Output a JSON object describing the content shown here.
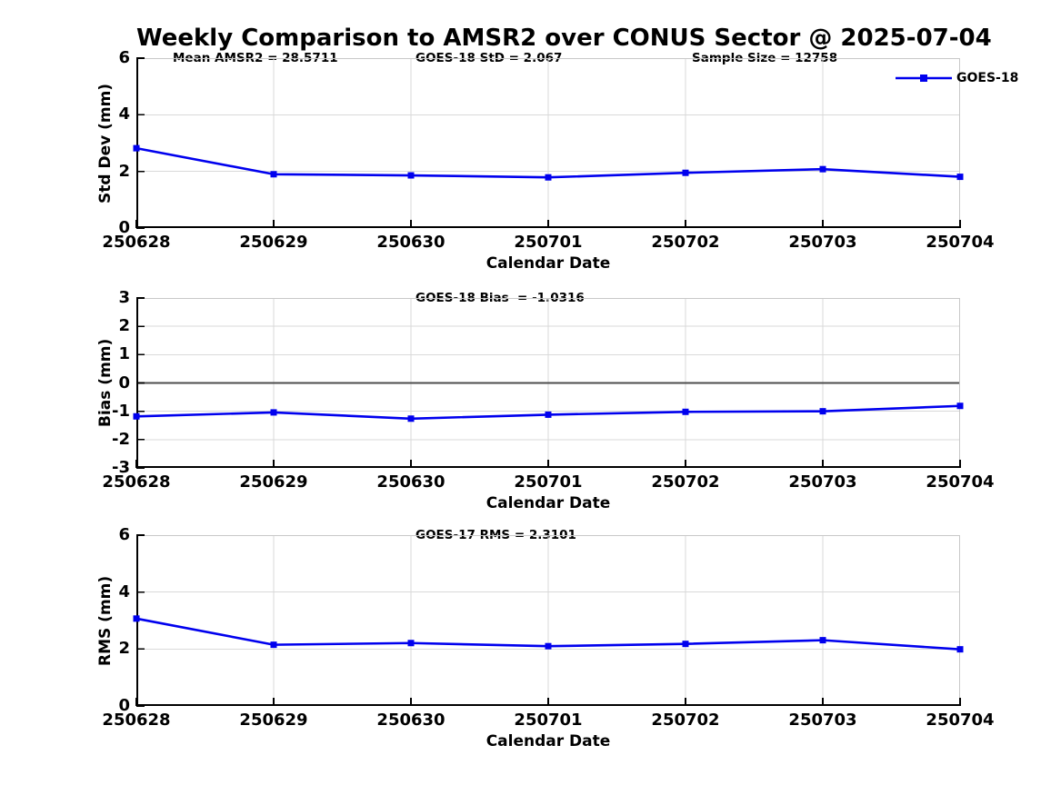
{
  "title": "Weekly Comparison to AMSR2 over CONUS Sector @ 2025-07-04",
  "legend": {
    "label": "GOES-18",
    "position": "top-right"
  },
  "colors": {
    "line": "#0000EE",
    "marker": "#0000EE",
    "grid": "#D9D9D9",
    "axis": "#000000",
    "box_light": "#C8C8C8",
    "zero_line": "#4D4D4D",
    "text": "#000000",
    "background": "#FFFFFF"
  },
  "chart_data": [
    {
      "type": "line",
      "marker": "square",
      "xlabel": "Calendar Date",
      "ylabel": "Std Dev (mm)",
      "ylim": [
        0,
        6
      ],
      "yticks": [
        0,
        2,
        4,
        6
      ],
      "grid": true,
      "zero_line": false,
      "categories": [
        "250628",
        "250629",
        "250630",
        "250701",
        "250702",
        "250703",
        "250704"
      ],
      "series": [
        {
          "name": "GOES-18",
          "values": [
            2.82,
            1.9,
            1.86,
            1.79,
            1.95,
            2.08,
            1.81
          ]
        }
      ],
      "annotations": [
        {
          "text": "Mean AMSR2 = 28.5711"
        },
        {
          "text": "GOES-18 StD = 2.067"
        },
        {
          "text": "Sample Size = 12758"
        }
      ]
    },
    {
      "type": "line",
      "marker": "square",
      "xlabel": "Calendar Date",
      "ylabel": "Bias (mm)",
      "ylim": [
        -3,
        3
      ],
      "yticks": [
        -3,
        -2,
        -1,
        0,
        1,
        2,
        3
      ],
      "grid": true,
      "zero_line": true,
      "categories": [
        "250628",
        "250629",
        "250630",
        "250701",
        "250702",
        "250703",
        "250704"
      ],
      "series": [
        {
          "name": "GOES-18",
          "values": [
            -1.18,
            -1.04,
            -1.26,
            -1.12,
            -1.02,
            -1.0,
            -0.81
          ]
        }
      ],
      "annotations": [
        {
          "text": "GOES-18 Bias  = -1.0316"
        }
      ]
    },
    {
      "type": "line",
      "marker": "square",
      "xlabel": "Calendar Date",
      "ylabel": "RMS (mm)",
      "ylim": [
        0,
        6
      ],
      "yticks": [
        0,
        2,
        4,
        6
      ],
      "grid": true,
      "zero_line": false,
      "categories": [
        "250628",
        "250629",
        "250630",
        "250701",
        "250702",
        "250703",
        "250704"
      ],
      "series": [
        {
          "name": "GOES-18",
          "values": [
            3.07,
            2.15,
            2.21,
            2.1,
            2.18,
            2.31,
            1.99
          ]
        }
      ],
      "annotations": [
        {
          "text": "GOES-17 RMS = 2.3101"
        }
      ]
    }
  ]
}
